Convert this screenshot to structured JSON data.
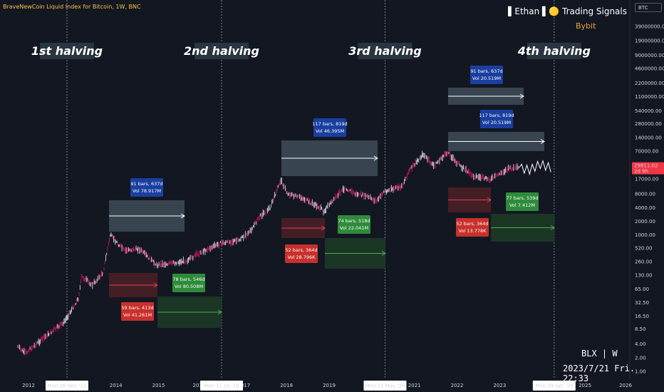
{
  "header": {
    "symbol_title": "BraveNewCoin Liquid Index for Bitcoin, 1W, BNC",
    "brand": "▌Ethan ▌🟡 Trading Signals",
    "sub_brand": "Bybit",
    "currency_button": "BTC"
  },
  "watermark": {
    "line1": "BLX | W",
    "line2": "2023/7/21 Fri. 22:33"
  },
  "halvings": [
    {
      "label": "1st halving",
      "date_label": "Mon 26 Nov '12",
      "date": "2012-11-26"
    },
    {
      "label": "2nd halving",
      "date_label": "Mon 11 Jul '16",
      "date": "2016-07-11"
    },
    {
      "label": "3rd halving",
      "date_label": "Mon 11 May '20",
      "date": "2020-05-11"
    },
    {
      "label": "4th halving",
      "date_label": "Mon 29 Apr '24",
      "date": "2024-04-29"
    }
  ],
  "current_price": {
    "value": "29811.02",
    "countdown": "2d 9h",
    "color": "#f23645"
  },
  "colors": {
    "background": "#131722",
    "candle_up": "#d1d4dc",
    "candle_down": "#c2185b",
    "halving_line": "#9598a1",
    "label_blue": "#1a3fa0",
    "label_red": "#c9302c",
    "label_green": "#2e8b3a",
    "box_grey": "#3d4a55",
    "box_red": "#4a1f26",
    "box_green": "#1d3a26"
  },
  "y_axis_ticks": [
    "39000000.00",
    "19000000.00",
    "9000000.00",
    "4600000.00",
    "2200000.00",
    "1100000.00",
    "540000.00",
    "280000.00",
    "140000.00",
    "70000.00",
    "35000.00",
    "17000.00",
    "8000.00",
    "4000.00",
    "2000.00",
    "1000.00",
    "520.00",
    "260.00",
    "130.00",
    "65.00",
    "32.50",
    "16.50",
    "8.50",
    "4.00",
    "2.00",
    "1.00"
  ],
  "x_axis_ticks": [
    "2012",
    "2014",
    "2015",
    "2016",
    "2017",
    "2018",
    "2019",
    "2021",
    "2022",
    "2023",
    "2025",
    "2026"
  ],
  "chart_data": {
    "type": "line",
    "title": "BraveNewCoin Liquid Index for Bitcoin, 1W, BNC",
    "y_scale": "log",
    "ylim": [
      1,
      39000000
    ],
    "series": [
      {
        "x": [
          "2011-10",
          "2011-12",
          "2012-06",
          "2012-11",
          "2013-03",
          "2013-04",
          "2013-07",
          "2013-10",
          "2013-12",
          "2014-04",
          "2014-08",
          "2015-01",
          "2015-06",
          "2015-10",
          "2016-01",
          "2016-07",
          "2016-12",
          "2017-03",
          "2017-06",
          "2017-09",
          "2017-12",
          "2018-02",
          "2018-06",
          "2018-11",
          "2018-12",
          "2019-06",
          "2019-09",
          "2019-12",
          "2020-03",
          "2020-05",
          "2020-10",
          "2020-12",
          "2021-04",
          "2021-07",
          "2021-11",
          "2022-01",
          "2022-06",
          "2022-11",
          "2023-01",
          "2023-04",
          "2023-07"
        ],
        "values": [
          3.5,
          2.5,
          6,
          12,
          40,
          120,
          80,
          150,
          1000,
          450,
          500,
          220,
          240,
          280,
          400,
          650,
          750,
          1100,
          2500,
          4000,
          16000,
          8000,
          6500,
          4000,
          3300,
          11000,
          8000,
          7200,
          5500,
          9000,
          11500,
          25000,
          60000,
          33000,
          67000,
          42000,
          20000,
          16500,
          21000,
          28500,
          29811
        ]
      }
    ],
    "projection": {
      "x": [
        "2023-07",
        "2023-10",
        "2024-01",
        "2024-04"
      ],
      "values": [
        29811,
        27000,
        36000,
        30000
      ]
    },
    "annotations": [
      {
        "kind": "bull_pre_halving",
        "text": [
          "91 bars, 637d",
          "Vol 78.917M"
        ]
      },
      {
        "kind": "bear",
        "text": [
          "59 bars, 413d",
          "Vol 41.261M"
        ]
      },
      {
        "kind": "accumulation",
        "text": [
          "78 bars, 546d",
          "Vol 80.508M"
        ]
      },
      {
        "kind": "bull_post_halving",
        "text": [
          "117 bars, 819d",
          "Vol 46.395M"
        ]
      },
      {
        "kind": "bear",
        "text": [
          "52 bars, 364d",
          "Vol 28.796K"
        ]
      },
      {
        "kind": "accumulation",
        "text": [
          "74 bars, 518d",
          "Vol 22.041M"
        ]
      },
      {
        "kind": "projection_637",
        "text": [
          "91 bars, 637d",
          "Vol 20.519M"
        ]
      },
      {
        "kind": "projection_819",
        "text": [
          "117 bars, 819d",
          "Vol 20.519M"
        ]
      },
      {
        "kind": "bear_projection",
        "text": [
          "52 bars, 364d",
          "Vol 13.778K"
        ]
      },
      {
        "kind": "accumulation_projection",
        "text": [
          "77 bars, 539d",
          "Vol 7.412M"
        ]
      }
    ]
  }
}
